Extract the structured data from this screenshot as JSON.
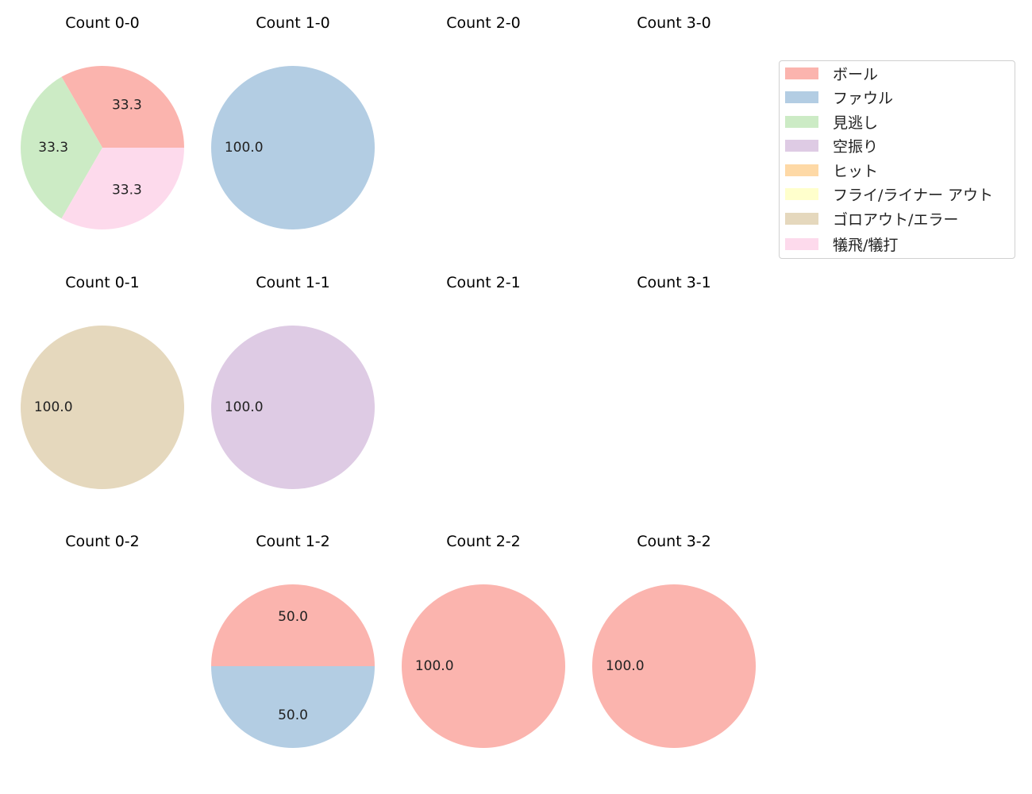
{
  "colors": [
    "#fbb4ae",
    "#b3cde3",
    "#ccebc5",
    "#decbe4",
    "#fed9a6",
    "#ffffcc",
    "#e5d8bd",
    "#fddaec"
  ],
  "chart_data": {
    "type": "pie",
    "legend": {
      "placement": "top-right",
      "entries": [
        "ボール",
        "ファウル",
        "見逃し",
        "空振り",
        "ヒット",
        "フライ/ライナー アウト",
        "ゴロアウト/エラー",
        "犠飛/犠打"
      ]
    },
    "panels": [
      {
        "title": "Count 0-0",
        "values": [
          33.3,
          0,
          33.3,
          0,
          0,
          0,
          0,
          33.3
        ],
        "labels": [
          "33.3",
          "33.3",
          "33.3"
        ]
      },
      {
        "title": "Count 1-0",
        "values": [
          0,
          100.0,
          0,
          0,
          0,
          0,
          0,
          0
        ],
        "labels": [
          "100.0"
        ]
      },
      {
        "title": "Count 2-0",
        "values": [],
        "labels": []
      },
      {
        "title": "Count 3-0",
        "values": [],
        "labels": []
      },
      {
        "title": "Count 0-1",
        "values": [
          0,
          0,
          0,
          0,
          0,
          0,
          100.0,
          0
        ],
        "labels": [
          "100.0"
        ]
      },
      {
        "title": "Count 1-1",
        "values": [
          0,
          0,
          0,
          100.0,
          0,
          0,
          0,
          0
        ],
        "labels": [
          "100.0"
        ]
      },
      {
        "title": "Count 2-1",
        "values": [],
        "labels": []
      },
      {
        "title": "Count 3-1",
        "values": [],
        "labels": []
      },
      {
        "title": "Count 0-2",
        "values": [],
        "labels": []
      },
      {
        "title": "Count 1-2",
        "values": [
          50.0,
          50.0,
          0,
          0,
          0,
          0,
          0,
          0
        ],
        "labels": [
          "50.0",
          "50.0"
        ]
      },
      {
        "title": "Count 2-2",
        "values": [
          100.0,
          0,
          0,
          0,
          0,
          0,
          0,
          0
        ],
        "labels": [
          "100.0"
        ]
      },
      {
        "title": "Count 3-2",
        "values": [
          100.0,
          0,
          0,
          0,
          0,
          0,
          0,
          0
        ],
        "labels": [
          "100.0"
        ]
      }
    ]
  }
}
